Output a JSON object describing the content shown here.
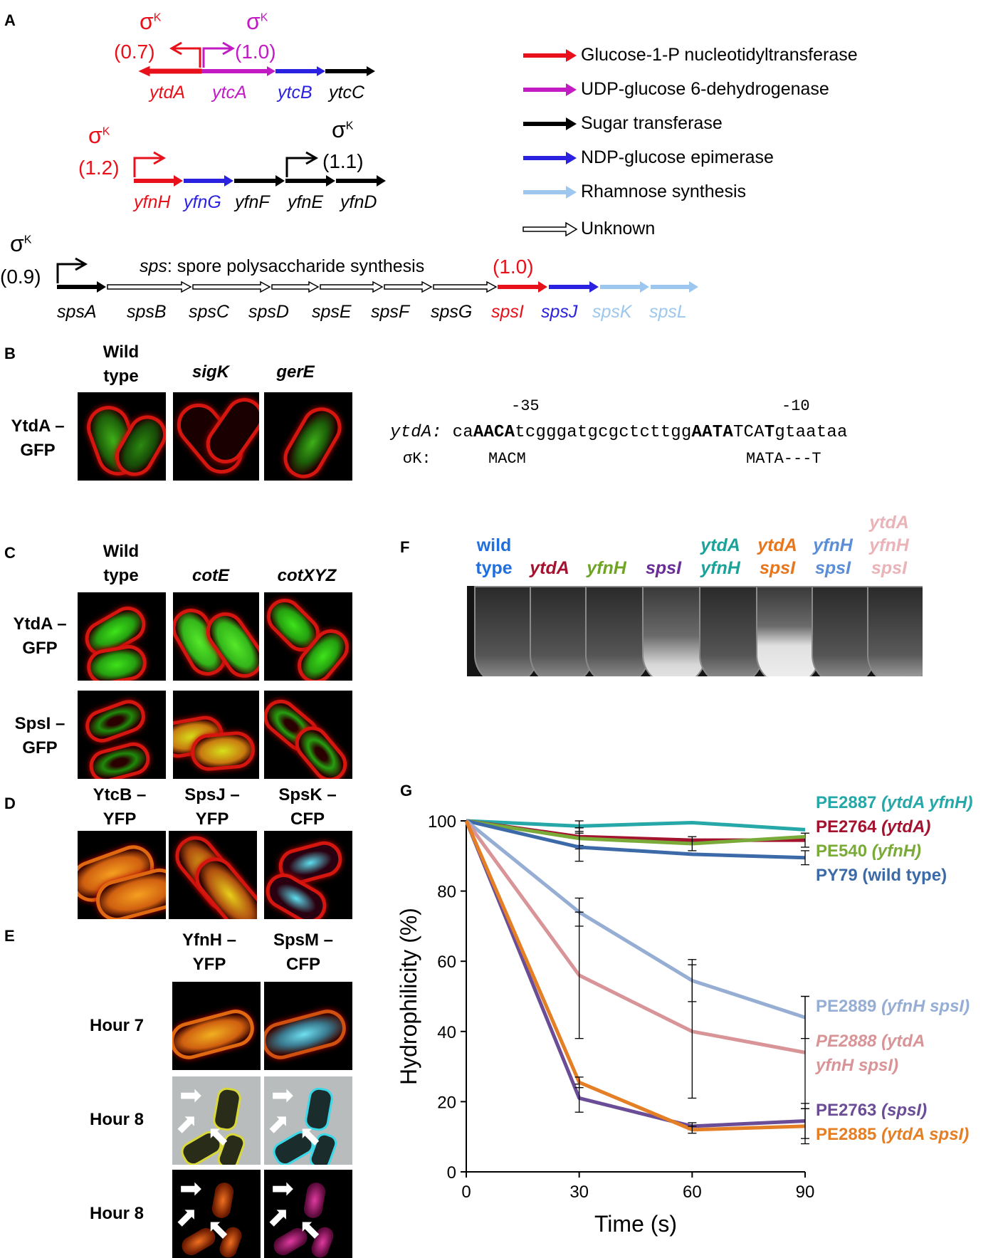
{
  "panels": {
    "A": "A",
    "B": "B",
    "C": "C",
    "D": "D",
    "E": "E",
    "F": "F",
    "G": "G"
  },
  "sigma": "σ",
  "sigma_sup": "K",
  "panelA": {
    "promoters": [
      "(0.7)",
      "(1.0)",
      "(1.2)",
      "(1.1)",
      "(0.9)",
      "(1.0)"
    ],
    "row1": [
      "ytdA",
      "ytcA",
      "ytcB",
      "ytcC"
    ],
    "row2": [
      "yfnH",
      "yfnG",
      "yfnF",
      "yfnE",
      "yfnD"
    ],
    "row3": [
      "spsA",
      "spsB",
      "spsC",
      "spsD",
      "spsE",
      "spsF",
      "spsG",
      "spsI",
      "spsJ",
      "spsK",
      "spsL"
    ],
    "sps_title_italic": "sps",
    "sps_title_rest": ": spore polysaccharide synthesis",
    "legend": [
      {
        "label": "Glucose-1-P nucleotidyltransferase",
        "color": "#e8101a"
      },
      {
        "label": "UDP-glucose 6-dehydrogenase",
        "color": "#c21bc4"
      },
      {
        "label": "Sugar transferase",
        "color": "#000000"
      },
      {
        "label": "NDP-glucose epimerase",
        "color": "#2a22e0"
      },
      {
        "label": "Rhamnose synthesis",
        "color": "#9dc7ee"
      },
      {
        "label": "Unknown",
        "color": "#ffffff"
      }
    ]
  },
  "panelB": {
    "headers": [
      "Wild type",
      "sigK",
      "gerE"
    ],
    "row_label": "YtdA –GFP",
    "minus35": "-35",
    "minus10": "-10",
    "seq_name": "ytdA:",
    "seq_parts": [
      "ca",
      "AACA",
      "tcgggatgcgctcttgg",
      "AATA",
      "TCA",
      "T",
      "gtaataa"
    ],
    "consensus_name": "σK:",
    "consensus_1": "MACM",
    "consensus_2": "MATA---T"
  },
  "panelC": {
    "headers": [
      "Wild type",
      "cotE",
      "cotXYZ"
    ],
    "rows": [
      "YtdA –GFP",
      "SpsI –GFP"
    ]
  },
  "panelD": {
    "headers": [
      "YtcB –YFP",
      "SpsJ –YFP",
      "SpsK –CFP"
    ]
  },
  "panelE": {
    "headers": [
      "YfnH –YFP",
      "SpsM –CFP"
    ],
    "rows": [
      "Hour 7",
      "Hour 8",
      "Hour 8"
    ]
  },
  "panelF": {
    "labels": [
      {
        "lines": [
          "wild",
          "type"
        ],
        "color": "#1f6fe0"
      },
      {
        "lines": [
          "ytdA"
        ],
        "color": "#a3122e"
      },
      {
        "lines": [
          "yfnH"
        ],
        "color": "#6fa424"
      },
      {
        "lines": [
          "spsI"
        ],
        "color": "#6a2e97"
      },
      {
        "lines": [
          "ytdA",
          "yfnH"
        ],
        "color": "#1ba39a"
      },
      {
        "lines": [
          "ytdA",
          "spsI"
        ],
        "color": "#e8761c"
      },
      {
        "lines": [
          "yfnH",
          "spsI"
        ],
        "color": "#5b8ed6"
      },
      {
        "lines": [
          "ytdA",
          "yfnH",
          "spsI"
        ],
        "color": "#eab3b8"
      }
    ]
  },
  "chart_data": {
    "type": "line",
    "xlabel": "Time (s)",
    "ylabel": "Hydrophilicity (%)",
    "x": [
      0,
      30,
      60,
      90
    ],
    "xlim": [
      0,
      90
    ],
    "ylim": [
      0,
      100
    ],
    "xticks": [
      "0",
      "30",
      "60",
      "90"
    ],
    "yticks": [
      "0",
      "20",
      "40",
      "60",
      "80",
      "100"
    ],
    "grid": false,
    "series": [
      {
        "name": "PE2887",
        "genotype": "(ytdA yfnH)",
        "values": [
          100,
          98.5,
          99.5,
          97.5
        ],
        "err": [
          0,
          1.5,
          0,
          0
        ],
        "color": "#27a8a8",
        "name_italic": false
      },
      {
        "name": "PE2764",
        "genotype": "(ytdA)",
        "values": [
          100,
          95.5,
          94.5,
          94.5
        ],
        "err": [
          0,
          2.5,
          0,
          2
        ],
        "color": "#a3122e",
        "name_italic": false
      },
      {
        "name": "PE540",
        "genotype": "(yfnH)",
        "values": [
          100,
          95,
          93.5,
          95.5
        ],
        "err": [
          0,
          3,
          2,
          0
        ],
        "color": "#7aaa37",
        "name_italic": false
      },
      {
        "name": "PY79",
        "genotype": "(wild type)",
        "values": [
          100,
          92.5,
          90.5,
          89.5
        ],
        "err": [
          0,
          4,
          0,
          2
        ],
        "color": "#3c6aa8",
        "name_italic": false
      },
      {
        "name": "PE2889",
        "genotype": "(yfnH spsI)",
        "values": [
          100,
          74,
          54.5,
          44
        ],
        "err": [
          0,
          4,
          6,
          6
        ],
        "color": "#96aed4",
        "name_italic": false
      },
      {
        "name": "PE2888",
        "genotype": "(ytdA yfnH spsI)",
        "values": [
          100,
          56,
          40,
          34
        ],
        "err": [
          0,
          18,
          19,
          16
        ],
        "color": "#d89496",
        "name_italic": true
      },
      {
        "name": "PE2763",
        "genotype": "(spsI)",
        "values": [
          100,
          21,
          13,
          14.5
        ],
        "err": [
          0,
          4,
          1,
          5
        ],
        "color": "#6a4d96",
        "name_italic": false
      },
      {
        "name": "PE2885",
        "genotype": "(ytdA spsI)",
        "values": [
          100,
          25.5,
          12,
          13
        ],
        "err": [
          0,
          1.5,
          1,
          5
        ],
        "color": "#e57f25",
        "name_italic": false
      }
    ]
  }
}
